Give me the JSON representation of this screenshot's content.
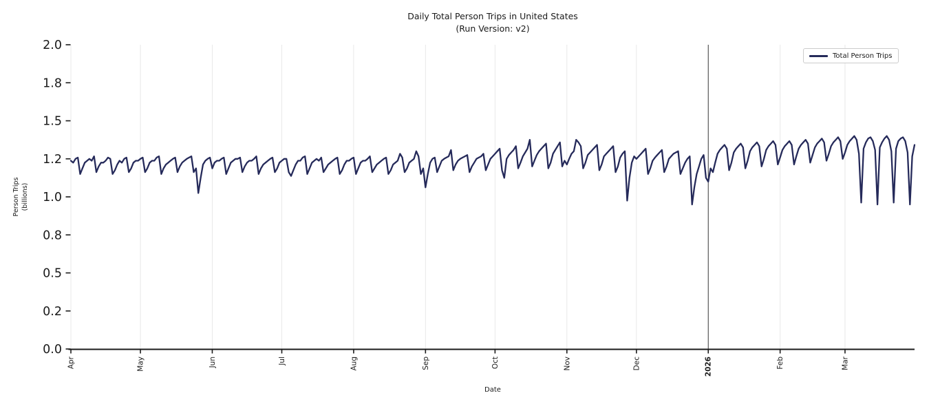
{
  "title": "Daily Total Person Trips in United States",
  "subtitle": "(Run Version: v2)",
  "legend": {
    "label": "Total Person Trips"
  },
  "colors": {
    "line": "#252a5a",
    "grid": "#e8e8e8",
    "axis": "#1a1a1a",
    "tick_label": "#1a1a1a",
    "event_line": "#3c3c3c",
    "legend_border": "#cccccc"
  },
  "chart_data": {
    "type": "line",
    "title": "Daily Total Person Trips in United States",
    "subtitle": "(Run Version: v2)",
    "xlabel": "Date",
    "ylabel_lines": [
      "Person Trips",
      "(billions)"
    ],
    "ylim": [
      0.0,
      2.0
    ],
    "y_ticks": [
      0.0,
      0.2,
      0.5,
      0.8,
      1.0,
      1.2,
      1.5,
      1.8,
      2.0
    ],
    "y_scale": "even-tick-spacing",
    "grid": "vertical-only",
    "legend_position": "upper right",
    "x_ticks": [
      {
        "label": "Apr",
        "day": 0,
        "bold": false
      },
      {
        "label": "May",
        "day": 30,
        "bold": false
      },
      {
        "label": "Jun",
        "day": 61,
        "bold": false
      },
      {
        "label": "Jul",
        "day": 91,
        "bold": false
      },
      {
        "label": "Aug",
        "day": 122,
        "bold": false
      },
      {
        "label": "Sep",
        "day": 153,
        "bold": false
      },
      {
        "label": "Oct",
        "day": 183,
        "bold": false
      },
      {
        "label": "Nov",
        "day": 214,
        "bold": false
      },
      {
        "label": "Dec",
        "day": 244,
        "bold": false
      },
      {
        "label": "2026",
        "day": 275,
        "bold": true
      },
      {
        "label": "Feb",
        "day": 306,
        "bold": false
      },
      {
        "label": "Mar",
        "day": 334,
        "bold": false
      }
    ],
    "event_line_day": 275,
    "series": [
      {
        "name": "Total Person Trips",
        "start_date": "2025-04-01",
        "frequency": "daily",
        "values": [
          1.19,
          1.18,
          1.2,
          1.21,
          1.12,
          1.15,
          1.18,
          1.19,
          1.2,
          1.19,
          1.22,
          1.13,
          1.16,
          1.18,
          1.18,
          1.19,
          1.21,
          1.2,
          1.12,
          1.14,
          1.17,
          1.19,
          1.18,
          1.2,
          1.21,
          1.13,
          1.15,
          1.18,
          1.19,
          1.19,
          1.2,
          1.21,
          1.13,
          1.15,
          1.18,
          1.19,
          1.19,
          1.21,
          1.22,
          1.12,
          1.15,
          1.17,
          1.18,
          1.19,
          1.2,
          1.21,
          1.13,
          1.16,
          1.18,
          1.19,
          1.2,
          1.21,
          1.22,
          1.13,
          1.15,
          1.02,
          1.1,
          1.17,
          1.19,
          1.2,
          1.21,
          1.15,
          1.18,
          1.19,
          1.19,
          1.2,
          1.21,
          1.12,
          1.15,
          1.18,
          1.19,
          1.2,
          1.2,
          1.21,
          1.13,
          1.16,
          1.18,
          1.19,
          1.19,
          1.2,
          1.22,
          1.12,
          1.15,
          1.17,
          1.18,
          1.19,
          1.2,
          1.21,
          1.13,
          1.15,
          1.18,
          1.19,
          1.2,
          1.2,
          1.13,
          1.11,
          1.14,
          1.17,
          1.19,
          1.19,
          1.21,
          1.22,
          1.12,
          1.15,
          1.18,
          1.19,
          1.2,
          1.19,
          1.21,
          1.13,
          1.15,
          1.17,
          1.18,
          1.19,
          1.2,
          1.21,
          1.12,
          1.14,
          1.17,
          1.19,
          1.19,
          1.2,
          1.21,
          1.12,
          1.15,
          1.18,
          1.19,
          1.19,
          1.2,
          1.22,
          1.13,
          1.15,
          1.17,
          1.18,
          1.19,
          1.2,
          1.21,
          1.12,
          1.14,
          1.17,
          1.18,
          1.19,
          1.24,
          1.21,
          1.13,
          1.15,
          1.18,
          1.19,
          1.2,
          1.26,
          1.22,
          1.12,
          1.15,
          1.05,
          1.12,
          1.18,
          1.2,
          1.21,
          1.13,
          1.16,
          1.19,
          1.2,
          1.21,
          1.22,
          1.27,
          1.14,
          1.17,
          1.19,
          1.2,
          1.21,
          1.22,
          1.23,
          1.13,
          1.16,
          1.18,
          1.2,
          1.21,
          1.22,
          1.24,
          1.14,
          1.17,
          1.2,
          1.22,
          1.24,
          1.26,
          1.28,
          1.14,
          1.1,
          1.2,
          1.23,
          1.25,
          1.27,
          1.3,
          1.15,
          1.18,
          1.22,
          1.25,
          1.28,
          1.35,
          1.16,
          1.19,
          1.23,
          1.26,
          1.28,
          1.3,
          1.32,
          1.15,
          1.18,
          1.24,
          1.27,
          1.3,
          1.33,
          1.16,
          1.19,
          1.17,
          1.2,
          1.24,
          1.26,
          1.35,
          1.33,
          1.3,
          1.15,
          1.18,
          1.23,
          1.25,
          1.27,
          1.29,
          1.31,
          1.14,
          1.17,
          1.22,
          1.24,
          1.26,
          1.28,
          1.3,
          1.13,
          1.16,
          1.21,
          1.24,
          1.26,
          0.98,
          1.1,
          1.18,
          1.22,
          1.2,
          1.22,
          1.24,
          1.26,
          1.28,
          1.12,
          1.15,
          1.19,
          1.21,
          1.23,
          1.25,
          1.27,
          1.13,
          1.16,
          1.2,
          1.22,
          1.24,
          1.25,
          1.26,
          1.12,
          1.15,
          1.18,
          1.2,
          1.22,
          0.96,
          1.05,
          1.12,
          1.16,
          1.2,
          1.23,
          1.1,
          1.08,
          1.15,
          1.13,
          1.18,
          1.24,
          1.27,
          1.29,
          1.31,
          1.28,
          1.14,
          1.18,
          1.25,
          1.28,
          1.3,
          1.32,
          1.29,
          1.15,
          1.19,
          1.26,
          1.29,
          1.31,
          1.33,
          1.3,
          1.16,
          1.2,
          1.27,
          1.3,
          1.32,
          1.34,
          1.31,
          1.17,
          1.21,
          1.27,
          1.3,
          1.32,
          1.34,
          1.31,
          1.17,
          1.22,
          1.28,
          1.31,
          1.33,
          1.35,
          1.32,
          1.18,
          1.23,
          1.29,
          1.32,
          1.34,
          1.36,
          1.33,
          1.19,
          1.24,
          1.3,
          1.33,
          1.35,
          1.37,
          1.34,
          1.2,
          1.25,
          1.31,
          1.34,
          1.36,
          1.38,
          1.35,
          1.24,
          0.97,
          1.28,
          1.33,
          1.36,
          1.37,
          1.34,
          1.27,
          0.96,
          1.29,
          1.33,
          1.36,
          1.38,
          1.35,
          1.26,
          0.97,
          1.28,
          1.34,
          1.36,
          1.37,
          1.34,
          1.25,
          0.96,
          1.22,
          1.31
        ]
      }
    ]
  }
}
